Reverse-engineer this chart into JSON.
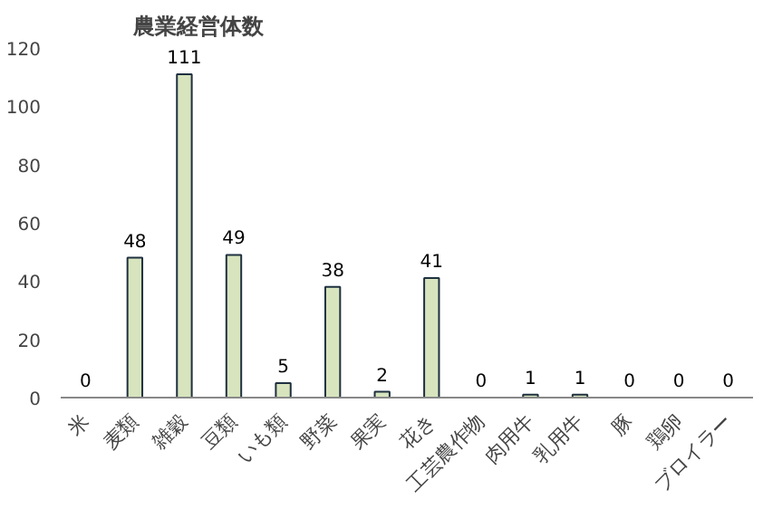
{
  "chart_data": {
    "type": "bar",
    "title": "農業経営体数",
    "categories": [
      "米",
      "麦類",
      "雑穀",
      "豆類",
      "いも類",
      "野菜",
      "果実",
      "花き",
      "工芸農作物",
      "肉用牛",
      "乳用牛",
      "豚",
      "鶏卵",
      "ブロイラー"
    ],
    "values": [
      0,
      48,
      111,
      49,
      5,
      38,
      2,
      41,
      0,
      1,
      1,
      0,
      0,
      0
    ],
    "color": "#d7e4bd",
    "ylim": [
      0,
      120
    ],
    "yticks": [
      0,
      20,
      40,
      60,
      80,
      100,
      120
    ],
    "data_labels": true
  }
}
